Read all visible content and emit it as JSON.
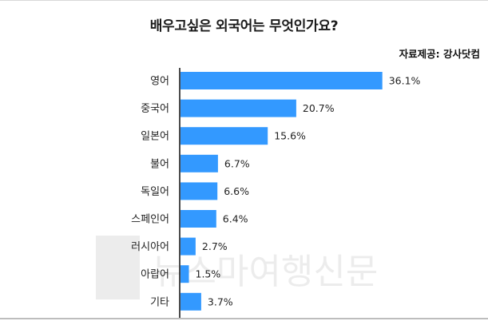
{
  "header": {
    "title": "배우고싶은 외국어는 무엇인가요?",
    "source": "자료제공: 강사닷컴"
  },
  "watermark": {
    "text": "뉴스마여행신문"
  },
  "colors": {
    "bar": "#3399ff",
    "axis": "#111111"
  },
  "chart_data": {
    "type": "bar",
    "orientation": "horizontal",
    "title": "배우고싶은 외국어는 무엇인가요?",
    "categories": [
      "영어",
      "중국어",
      "일본어",
      "불어",
      "독일어",
      "스페인어",
      "러시아어",
      "아랍어",
      "기타"
    ],
    "values": [
      36.1,
      20.7,
      15.6,
      6.7,
      6.6,
      6.4,
      2.7,
      1.5,
      3.7
    ],
    "value_labels": [
      "36.1%",
      "20.7%",
      "15.6%",
      "6.7%",
      "6.6%",
      "6.4%",
      "2.7%",
      "1.5%",
      "3.7%"
    ],
    "xlim": [
      0,
      40
    ],
    "grid": false,
    "legend": "none"
  }
}
